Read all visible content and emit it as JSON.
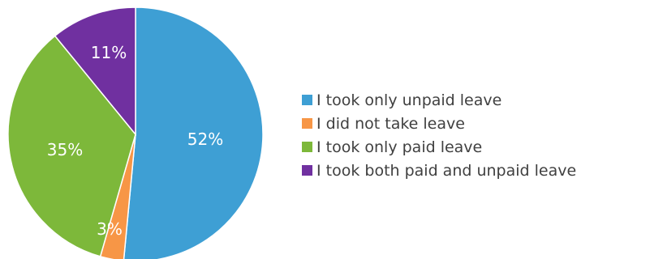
{
  "chart_data": {
    "type": "pie",
    "title": "",
    "start_angle_deg": 0,
    "direction": "clockwise",
    "legend_position": "right",
    "slices": [
      {
        "label": "I took only unpaid leave",
        "value": 52,
        "display": "52%",
        "color": "#3e9fd4"
      },
      {
        "label": "I did not take leave",
        "value": 3,
        "display": "3%",
        "color": "#f79646"
      },
      {
        "label": "I took only paid leave",
        "value": 35,
        "display": "35%",
        "color": "#7db83a"
      },
      {
        "label": "I took both paid and unpaid leave",
        "value": 11,
        "display": "11%",
        "color": "#7030a0"
      }
    ]
  }
}
